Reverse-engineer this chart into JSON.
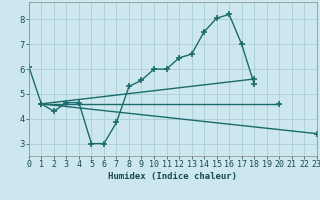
{
  "bg_color": "#cce8ee",
  "grid_color": "#aacdd6",
  "line_color": "#1a6b6b",
  "line_width": 1.0,
  "marker": "+",
  "marker_size": 4,
  "marker_edge_width": 1.2,
  "xlabel": "Humidex (Indice chaleur)",
  "xlim": [
    0,
    23
  ],
  "ylim": [
    2.5,
    8.7
  ],
  "yticks": [
    3,
    4,
    5,
    6,
    7,
    8
  ],
  "xlabel_fontsize": 6.5,
  "tick_fontsize": 6,
  "series": [
    {
      "x": [
        0,
        1,
        2,
        3,
        4,
        5,
        6,
        7,
        8,
        9,
        10,
        11,
        12,
        13,
        14,
        15,
        16,
        17,
        18
      ],
      "y": [
        6.1,
        4.6,
        4.3,
        4.65,
        4.65,
        3.0,
        3.0,
        3.85,
        5.3,
        5.55,
        6.0,
        6.0,
        6.45,
        6.6,
        7.5,
        8.05,
        8.2,
        7.0,
        5.4
      ]
    },
    {
      "x": [
        1,
        23
      ],
      "y": [
        4.6,
        3.4
      ]
    },
    {
      "x": [
        1,
        20
      ],
      "y": [
        4.6,
        4.6
      ]
    },
    {
      "x": [
        1,
        18
      ],
      "y": [
        4.6,
        5.6
      ]
    }
  ]
}
